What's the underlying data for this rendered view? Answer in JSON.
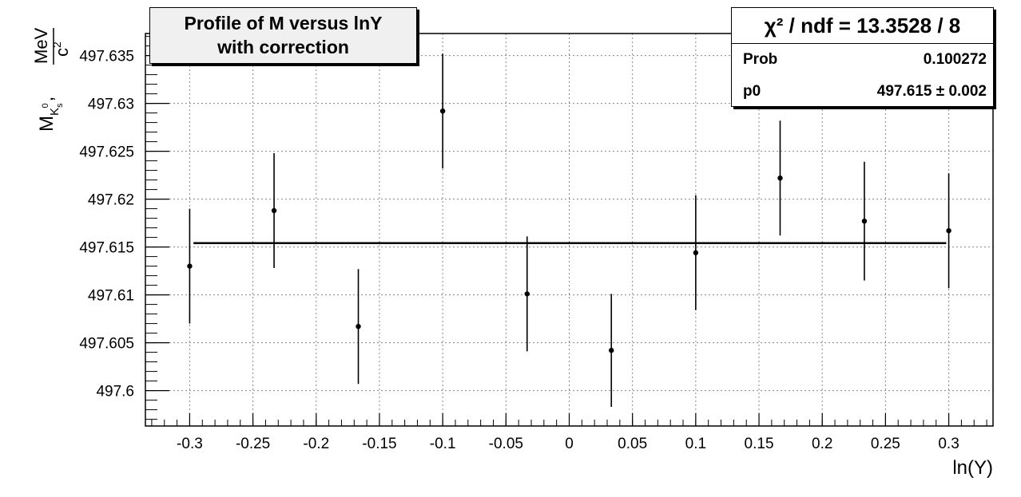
{
  "chart_data": {
    "type": "scatter",
    "title": "Profile of M versus lnY with correction",
    "title_lines": [
      "Profile of M versus lnY",
      "with correction"
    ],
    "xlabel": "ln(Y)",
    "ylabel": {
      "symbol": "M",
      "subscript": "K",
      "sub_subscript": "s",
      "superscript": "0",
      "unit_numerator": "MeV",
      "unit_denominator": "c",
      "unit_den_exponent": "2"
    },
    "xlim": [
      -0.335,
      0.335
    ],
    "ylim": [
      497.5963,
      497.6373
    ],
    "x_ticks": [
      "-0.3",
      "-0.25",
      "-0.2",
      "-0.15",
      "-0.1",
      "-0.05",
      "0",
      "0.05",
      "0.1",
      "0.15",
      "0.2",
      "0.25",
      "0.3"
    ],
    "x_tick_values": [
      -0.3,
      -0.25,
      -0.2,
      -0.15,
      -0.1,
      -0.05,
      0,
      0.05,
      0.1,
      0.15,
      0.2,
      0.25,
      0.3
    ],
    "y_ticks": [
      "497.6",
      "497.605",
      "497.61",
      "497.615",
      "497.62",
      "497.625",
      "497.63",
      "497.635"
    ],
    "y_tick_values": [
      497.6,
      497.605,
      497.61,
      497.615,
      497.62,
      497.625,
      497.63,
      497.635
    ],
    "grid": true,
    "series": [
      {
        "x": [
          -0.3,
          -0.2333,
          -0.1667,
          -0.1,
          -0.0333,
          0.0333,
          0.1,
          0.1667,
          0.2333,
          0.3
        ],
        "y": [
          497.613,
          497.6188,
          497.6067,
          497.6292,
          497.6101,
          497.6042,
          497.6144,
          497.6222,
          497.6177,
          497.6167
        ],
        "yerr": [
          0.006,
          0.006,
          0.006,
          0.006,
          0.006,
          0.0059,
          0.006,
          0.006,
          0.0062,
          0.006
        ]
      }
    ],
    "fit": {
      "type": "constant",
      "value": 497.6154,
      "x_range": [
        -0.297,
        0.298
      ]
    },
    "stats_box": {
      "header": "χ² / ndf = 13.3528 / 8",
      "rows": [
        {
          "label": "Prob",
          "value": "0.100272"
        },
        {
          "label": "p0",
          "value": "497.615 ± 0.002"
        }
      ]
    }
  }
}
